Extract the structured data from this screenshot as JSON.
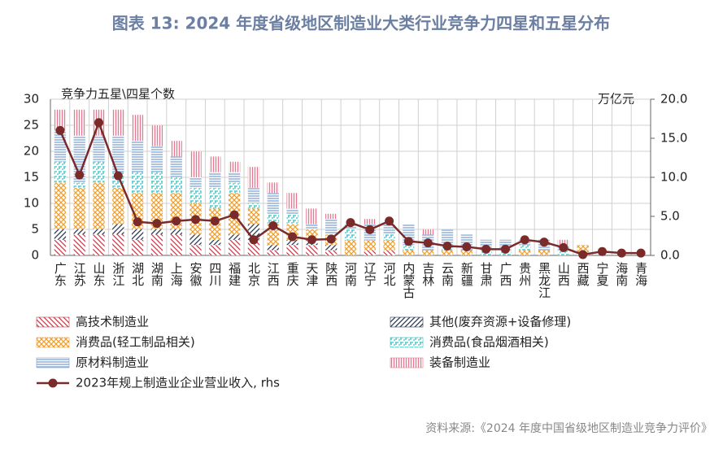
{
  "chart_data": {
    "type": "bar",
    "title": "图表 13: 2024 年度省级地区制造业大类行业竞争力四星和五星分布",
    "y_label": "竞争力五星\\四星个数",
    "y2_label": "万亿元",
    "source": "资料来源:《2024 年度中国省级地区制造业竞争力评价》",
    "categories": [
      "广东",
      "江苏",
      "山东",
      "浙江",
      "湖北",
      "湖南",
      "上海",
      "安徽",
      "四川",
      "福建",
      "北京",
      "江西",
      "重庆",
      "天津",
      "陕西",
      "河南",
      "辽宁",
      "河北",
      "内蒙古",
      "吉林",
      "云南",
      "新疆",
      "甘肃",
      "广西",
      "贵州",
      "黑龙江",
      "山西",
      "西藏",
      "宁夏",
      "海南",
      "青海"
    ],
    "ylim": [
      0,
      30
    ],
    "yticks": [
      0,
      5,
      10,
      15,
      20,
      25,
      30
    ],
    "y2lim": [
      0,
      20
    ],
    "y2ticks": [
      {
        "value": 0,
        "label": "0.0"
      },
      {
        "value": 5,
        "label": "5.0"
      },
      {
        "value": 10,
        "label": "10.0"
      },
      {
        "value": 15,
        "label": "15.0"
      },
      {
        "value": 20,
        "label": "20.0"
      }
    ],
    "grid": true,
    "series": [
      {
        "name": "高技术制造业",
        "color": "#c0404f",
        "hatch": "back",
        "values": [
          3,
          4,
          4,
          4,
          3,
          4,
          4,
          2,
          2,
          3,
          3,
          1,
          2,
          2,
          1,
          0,
          1,
          1,
          0,
          0,
          0,
          0,
          0,
          0,
          0,
          0,
          0,
          0,
          0,
          0,
          0
        ]
      },
      {
        "name": "其他(废弃资源+设备修理)",
        "color": "#2b3a55",
        "hatch": "fwd",
        "values": [
          2,
          1,
          1,
          2,
          2,
          1,
          1,
          2,
          1,
          1,
          3,
          1,
          1,
          1,
          1,
          0,
          0,
          0,
          0,
          0,
          0,
          0,
          0,
          0,
          0,
          0,
          0,
          0,
          0,
          0,
          0
        ]
      },
      {
        "name": "消费品(轻工制品相关)",
        "color": "#f0a030",
        "hatch": "cross",
        "values": [
          9,
          8,
          9,
          7,
          7,
          7,
          7,
          6,
          6,
          8,
          3,
          4,
          3,
          2,
          2,
          3,
          2,
          2,
          1,
          1,
          1,
          1,
          0,
          0,
          1,
          1,
          0,
          2,
          0,
          0,
          0
        ]
      },
      {
        "name": "消费品(食品烟酒相关)",
        "color": "#30c8c8",
        "hatch": "grid",
        "values": [
          4,
          1,
          4,
          3,
          4,
          4,
          3,
          3,
          4,
          2,
          1,
          2,
          2,
          0,
          0,
          2,
          0,
          1,
          1,
          0,
          1,
          0,
          1,
          1,
          1,
          0,
          1,
          0,
          0,
          0,
          0
        ]
      },
      {
        "name": "原材料制造业",
        "color": "#7aa0d0",
        "hatch": "horiz",
        "values": [
          6,
          9,
          5,
          7,
          6,
          5,
          4,
          2,
          3,
          2,
          3,
          4,
          1,
          1,
          3,
          1,
          3,
          2,
          4,
          3,
          3,
          3,
          2,
          2,
          1,
          2,
          1,
          0,
          0,
          0,
          0
        ]
      },
      {
        "name": "装备制造业",
        "color": "#e87890",
        "hatch": "vert",
        "values": [
          4,
          5,
          5,
          5,
          5,
          4,
          3,
          5,
          3,
          2,
          4,
          2,
          3,
          3,
          1,
          0,
          1,
          0,
          0,
          1,
          0,
          0,
          0,
          0,
          0,
          0,
          1,
          0,
          0,
          0,
          0
        ]
      },
      {
        "name": "2023年规上制造业企业营业收入, rhs",
        "color": "#7b2a2a",
        "type": "line",
        "axis": "y2",
        "values": [
          16.0,
          10.3,
          17.0,
          10.2,
          4.3,
          4.1,
          4.4,
          4.6,
          4.4,
          5.2,
          2.0,
          3.8,
          2.4,
          2.0,
          2.1,
          4.2,
          3.3,
          4.4,
          1.8,
          1.6,
          1.2,
          1.1,
          0.8,
          0.8,
          2.0,
          1.7,
          1.0,
          0.1,
          0.5,
          0.3,
          0.3
        ]
      }
    ]
  }
}
